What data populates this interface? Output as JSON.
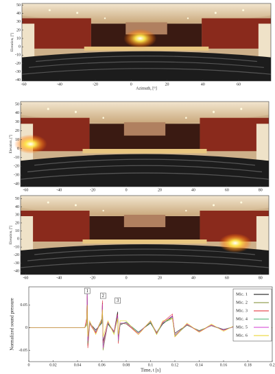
{
  "chart_data": [
    {
      "type": "heatmap",
      "xlabel": "Azimuth, [°]",
      "ylabel": "Elevation, [°]",
      "xlim": [
        -61,
        78
      ],
      "ylim": [
        -41,
        52
      ],
      "xticks": [
        -60,
        -40,
        -20,
        0,
        20,
        40,
        60
      ],
      "yticks": [
        50,
        40,
        30,
        20,
        10,
        0,
        -10,
        -20,
        -30,
        -40
      ],
      "source": {
        "azimuth": 5,
        "elevation": 10
      }
    },
    {
      "type": "heatmap",
      "ylabel": "Elevation, [°]",
      "xlim": [
        -63,
        85
      ],
      "ylim": [
        -43,
        53
      ],
      "xticks": [
        -60,
        -40,
        -20,
        0,
        20,
        40,
        60,
        80
      ],
      "yticks": [
        50,
        40,
        30,
        20,
        10,
        0,
        -10,
        -20,
        -30,
        -40
      ],
      "source": {
        "azimuth": -57,
        "elevation": 5
      }
    },
    {
      "type": "heatmap",
      "ylabel": "Elevation, [°]",
      "xlim": [
        -63,
        85
      ],
      "ylim": [
        -44,
        54
      ],
      "xticks": [
        -60,
        -40,
        -20,
        0,
        20,
        40,
        60,
        80
      ],
      "yticks": [
        50,
        40,
        30,
        20,
        10,
        0,
        -10,
        -20,
        -30,
        -40
      ],
      "source": {
        "azimuth": 65,
        "elevation": -5
      }
    },
    {
      "type": "line",
      "xlabel": "Time, t [s]",
      "ylabel": "Normalized sound pressure",
      "xlim": [
        0,
        0.2
      ],
      "ylim": [
        -0.075,
        0.09
      ],
      "xticks": [
        0,
        0.02,
        0.04,
        0.06,
        0.08,
        0.1,
        0.12,
        0.14,
        0.16,
        0.18,
        0.2
      ],
      "yticks": [
        -0.05,
        0,
        0.05
      ],
      "legend": "upper right",
      "annotations": [
        {
          "text": "1",
          "x": 0.048
        },
        {
          "text": "2",
          "x": 0.061
        },
        {
          "text": "3",
          "x": 0.073
        }
      ],
      "x": [
        0,
        0.046,
        0.0475,
        0.048,
        0.0485,
        0.05,
        0.055,
        0.06,
        0.0605,
        0.061,
        0.065,
        0.07,
        0.073,
        0.0735,
        0.075,
        0.08,
        0.09,
        0.1,
        0.105,
        0.11,
        0.118,
        0.12,
        0.13,
        0.14,
        0.15,
        0.16,
        0.17,
        0.18,
        0.19,
        0.2
      ],
      "series": [
        {
          "name": "Mic. 1",
          "color": "#000000",
          "values": [
            0,
            0,
            0.01,
            0.08,
            -0.03,
            0.01,
            -0.005,
            0.01,
            0.055,
            -0.03,
            0.008,
            -0.01,
            0.035,
            -0.025,
            0.006,
            0.012,
            -0.01,
            0.01,
            -0.012,
            0.008,
            0.025,
            -0.012,
            0.006,
            -0.008,
            0.005,
            -0.004,
            0.003,
            -0.003,
            0.002,
            0
          ]
        },
        {
          "name": "Mic. 2",
          "color": "#7a8a2a",
          "values": [
            0,
            0,
            0.005,
            0.06,
            -0.04,
            0.012,
            -0.01,
            0.02,
            0.05,
            -0.05,
            0.01,
            -0.008,
            0.02,
            -0.02,
            0.01,
            0.008,
            -0.012,
            0.012,
            -0.01,
            0.01,
            0.02,
            -0.015,
            0.005,
            -0.006,
            0.004,
            -0.005,
            0.003,
            -0.002,
            0.002,
            0
          ]
        },
        {
          "name": "Mic. 3",
          "color": "#e0202a",
          "values": [
            0,
            0,
            0.02,
            0.07,
            -0.045,
            0.008,
            -0.012,
            0.015,
            0.06,
            -0.035,
            0.012,
            -0.01,
            0.03,
            -0.035,
            0.01,
            0.01,
            -0.015,
            0.015,
            -0.014,
            0.012,
            0.03,
            -0.02,
            0.008,
            -0.01,
            0.006,
            -0.006,
            0.004,
            -0.003,
            0.002,
            0
          ]
        },
        {
          "name": "Mic. 4",
          "color": "#3fae6a",
          "values": [
            0,
            0,
            0.008,
            0.065,
            -0.035,
            0.01,
            -0.008,
            0.012,
            0.045,
            -0.04,
            0.01,
            -0.012,
            0.025,
            -0.03,
            0.008,
            0.012,
            -0.01,
            0.012,
            -0.015,
            0.01,
            0.022,
            -0.018,
            0.006,
            -0.007,
            0.005,
            -0.005,
            0.004,
            -0.003,
            0.002,
            0
          ]
        },
        {
          "name": "Mic. 5",
          "color": "#d23ad2",
          "values": [
            0,
            0,
            0.012,
            0.075,
            -0.03,
            0.012,
            -0.01,
            0.018,
            0.052,
            -0.045,
            0.012,
            -0.01,
            0.028,
            -0.028,
            0.01,
            0.01,
            -0.012,
            0.014,
            -0.012,
            0.011,
            0.026,
            -0.016,
            0.007,
            -0.008,
            0.005,
            -0.005,
            0.003,
            -0.003,
            0.002,
            0
          ]
        },
        {
          "name": "Mic. 6",
          "color": "#e8d21c",
          "values": [
            0,
            0,
            0.01,
            0.05,
            -0.02,
            0.015,
            -0.015,
            0.02,
            0.04,
            -0.02,
            0.015,
            -0.015,
            0.02,
            -0.015,
            0.015,
            0.015,
            -0.015,
            0.015,
            -0.015,
            0.015,
            0.02,
            -0.02,
            0.01,
            -0.01,
            0.008,
            -0.008,
            0.006,
            -0.005,
            0.004,
            0
          ]
        }
      ]
    }
  ]
}
